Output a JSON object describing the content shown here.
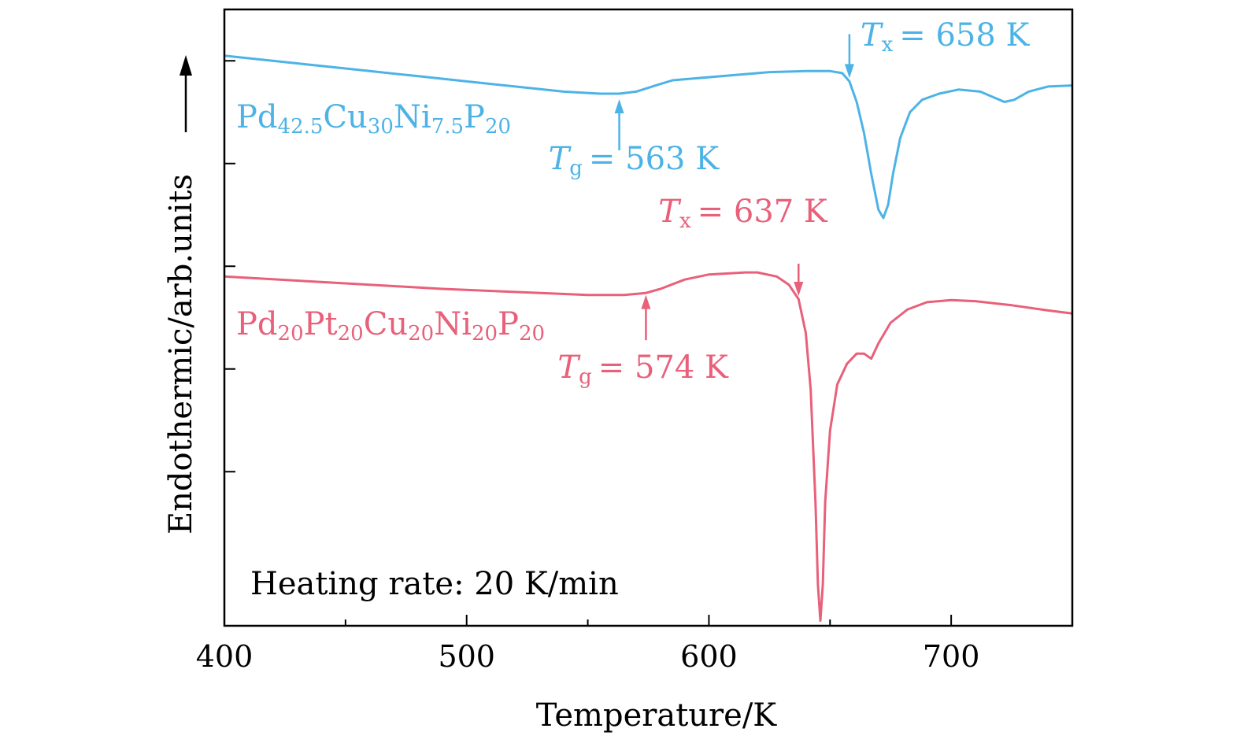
{
  "chart_data": {
    "type": "line",
    "title": "",
    "xlabel": "Temperature/K",
    "ylabel": "Endothermic/arb.units",
    "xlim": [
      400,
      750
    ],
    "ylim": [
      0,
      6
    ],
    "x_ticks": [
      400,
      500,
      600,
      700
    ],
    "x_tick_labels": [
      "400",
      "500",
      "600",
      "700"
    ],
    "yticks_labeled": false,
    "grid": false,
    "annotation_box": "Heating rate: 20 K/min",
    "series": [
      {
        "name": "Pd42.5Cu30Ni7.5P20",
        "label_parts": [
          {
            "t": "Pd",
            "sub": false
          },
          {
            "t": "42.5",
            "sub": true
          },
          {
            "t": "Cu",
            "sub": false
          },
          {
            "t": "30",
            "sub": true
          },
          {
            "t": "Ni",
            "sub": false
          },
          {
            "t": "7.5",
            "sub": true
          },
          {
            "t": "P",
            "sub": false
          },
          {
            "t": "20",
            "sub": true
          }
        ],
        "color": "#4db3e6",
        "points": [
          [
            400,
            5.55
          ],
          [
            420,
            5.5
          ],
          [
            440,
            5.45
          ],
          [
            460,
            5.4
          ],
          [
            480,
            5.35
          ],
          [
            500,
            5.3
          ],
          [
            520,
            5.25
          ],
          [
            540,
            5.2
          ],
          [
            555,
            5.18
          ],
          [
            563,
            5.18
          ],
          [
            570,
            5.2
          ],
          [
            578,
            5.26
          ],
          [
            585,
            5.31
          ],
          [
            595,
            5.33
          ],
          [
            610,
            5.36
          ],
          [
            625,
            5.39
          ],
          [
            640,
            5.4
          ],
          [
            650,
            5.4
          ],
          [
            655,
            5.38
          ],
          [
            658,
            5.3
          ],
          [
            661,
            5.1
          ],
          [
            664,
            4.8
          ],
          [
            667,
            4.4
          ],
          [
            670,
            4.05
          ],
          [
            672,
            3.97
          ],
          [
            674,
            4.1
          ],
          [
            676,
            4.4
          ],
          [
            679,
            4.75
          ],
          [
            683,
            5.0
          ],
          [
            688,
            5.12
          ],
          [
            695,
            5.18
          ],
          [
            703,
            5.22
          ],
          [
            712,
            5.2
          ],
          [
            718,
            5.14
          ],
          [
            722,
            5.1
          ],
          [
            726,
            5.12
          ],
          [
            732,
            5.2
          ],
          [
            740,
            5.25
          ],
          [
            750,
            5.26
          ]
        ],
        "tg_label": "T",
        "tg_sub": "g",
        "tg_value": "= 563 K",
        "tg_x": 563,
        "tx_label": "T",
        "tx_sub": "x",
        "tx_value": "= 658 K",
        "tx_x": 658
      },
      {
        "name": "Pd20Pt20Cu20Ni20P20",
        "label_parts": [
          {
            "t": "Pd",
            "sub": false
          },
          {
            "t": "20",
            "sub": true
          },
          {
            "t": "Pt",
            "sub": false
          },
          {
            "t": "20",
            "sub": true
          },
          {
            "t": "Cu",
            "sub": false
          },
          {
            "t": "20",
            "sub": true
          },
          {
            "t": "Ni",
            "sub": false
          },
          {
            "t": "20",
            "sub": true
          },
          {
            "t": "P",
            "sub": false
          },
          {
            "t": "20",
            "sub": true
          }
        ],
        "color": "#e8607a",
        "points": [
          [
            400,
            3.4
          ],
          [
            430,
            3.36
          ],
          [
            460,
            3.32
          ],
          [
            490,
            3.28
          ],
          [
            520,
            3.25
          ],
          [
            550,
            3.22
          ],
          [
            565,
            3.22
          ],
          [
            574,
            3.24
          ],
          [
            580,
            3.28
          ],
          [
            590,
            3.37
          ],
          [
            600,
            3.42
          ],
          [
            615,
            3.44
          ],
          [
            620,
            3.44
          ],
          [
            628,
            3.4
          ],
          [
            633,
            3.32
          ],
          [
            637,
            3.18
          ],
          [
            640,
            2.85
          ],
          [
            642,
            2.3
          ],
          [
            644,
            1.2
          ],
          [
            645,
            0.4
          ],
          [
            646,
            0.05
          ],
          [
            647,
            0.4
          ],
          [
            648,
            1.2
          ],
          [
            650,
            1.9
          ],
          [
            653,
            2.35
          ],
          [
            657,
            2.55
          ],
          [
            661,
            2.65
          ],
          [
            664,
            2.65
          ],
          [
            667,
            2.6
          ],
          [
            670,
            2.75
          ],
          [
            675,
            2.95
          ],
          [
            682,
            3.08
          ],
          [
            690,
            3.15
          ],
          [
            700,
            3.17
          ],
          [
            710,
            3.16
          ],
          [
            725,
            3.12
          ],
          [
            740,
            3.07
          ],
          [
            750,
            3.04
          ]
        ],
        "tg_label": "T",
        "tg_sub": "g",
        "tg_value": "= 574 K",
        "tg_x": 574,
        "tx_label": "T",
        "tx_sub": "x",
        "tx_value": "= 637 K",
        "tx_x": 637
      }
    ]
  }
}
